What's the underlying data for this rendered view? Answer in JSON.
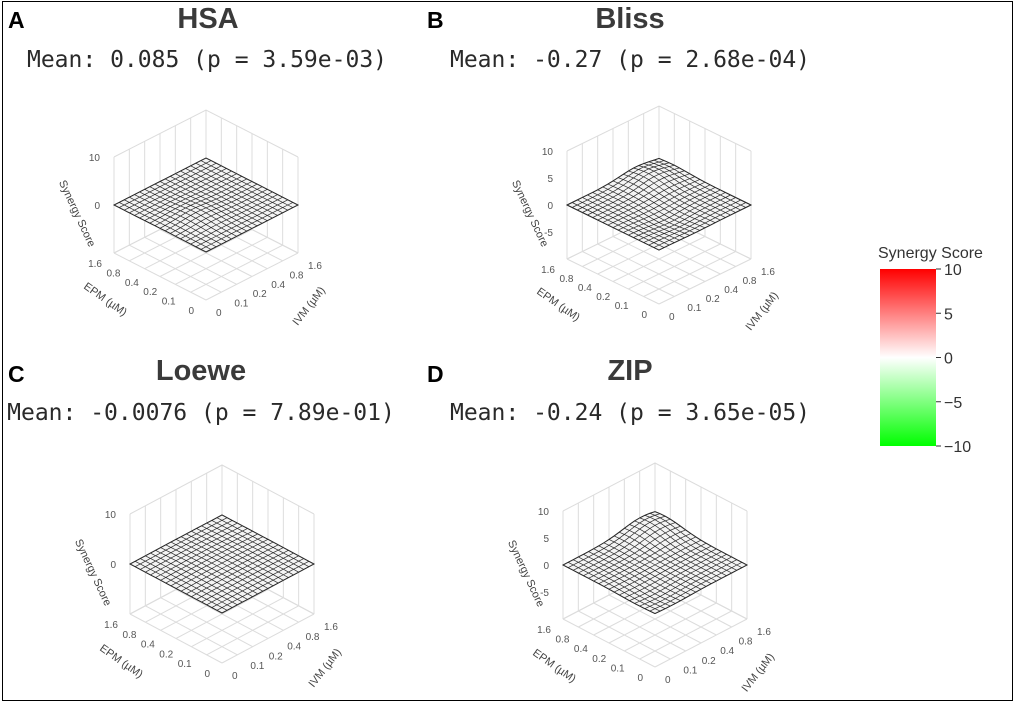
{
  "chart_data": [
    {
      "letter": "A",
      "title": "HSA",
      "subtitle": "Mean: 0.085 (p = 3.59e-03)",
      "type": "surface",
      "xlabel": "EPM (µM)",
      "ylabel": "IVM (µM)",
      "zlabel": "Synergy Score",
      "x_ticks": [
        "0",
        "0.1",
        "0.2",
        "0.4",
        "0.8",
        "1.6"
      ],
      "y_ticks": [
        "0",
        "0.1",
        "0.2",
        "0.4",
        "0.8",
        "1.6"
      ],
      "z_ticks": [
        "0",
        "10"
      ],
      "zlim": [
        -10,
        10
      ],
      "mean": 0.085,
      "p_value": "3.59e-03"
    },
    {
      "letter": "B",
      "title": "Bliss",
      "subtitle": "Mean: -0.27 (p = 2.68e-04)",
      "type": "surface",
      "xlabel": "EPM (µM)",
      "ylabel": "IVM (µM)",
      "zlabel": "Synergy Score",
      "x_ticks": [
        "0",
        "0.1",
        "0.2",
        "0.4",
        "0.8",
        "1.6"
      ],
      "y_ticks": [
        "0",
        "0.1",
        "0.2",
        "0.4",
        "0.8",
        "1.6"
      ],
      "z_ticks": [
        "-5",
        "0",
        "5",
        "10"
      ],
      "zlim": [
        -10,
        10
      ],
      "mean": -0.27,
      "p_value": "2.68e-04"
    },
    {
      "letter": "C",
      "title": "Loewe",
      "subtitle": "Mean: -0.0076 (p = 7.89e-01)",
      "type": "surface",
      "xlabel": "EPM (µM)",
      "ylabel": "IVM (µM)",
      "zlabel": "Synergy Score",
      "x_ticks": [
        "0",
        "0.1",
        "0.2",
        "0.4",
        "0.8",
        "1.6"
      ],
      "y_ticks": [
        "0",
        "0.1",
        "0.2",
        "0.4",
        "0.8",
        "1.6"
      ],
      "z_ticks": [
        "0",
        "10"
      ],
      "zlim": [
        -10,
        10
      ],
      "mean": -0.0076,
      "p_value": "7.89e-01"
    },
    {
      "letter": "D",
      "title": "ZIP",
      "subtitle": "Mean: -0.24 (p = 3.65e-05)",
      "type": "surface",
      "xlabel": "EPM (µM)",
      "ylabel": "IVM (µM)",
      "zlabel": "Synergy Score",
      "x_ticks": [
        "0",
        "0.1",
        "0.2",
        "0.4",
        "0.8",
        "1.6"
      ],
      "y_ticks": [
        "0",
        "0.1",
        "0.2",
        "0.4",
        "0.8",
        "1.6"
      ],
      "z_ticks": [
        "-5",
        "0",
        "5",
        "10"
      ],
      "zlim": [
        -10,
        10
      ],
      "mean": -0.24,
      "p_value": "3.65e-05"
    }
  ],
  "legend": {
    "title": "Synergy Score",
    "ticks": [
      "10",
      "5",
      "0",
      "−5",
      "−10"
    ],
    "range": [
      -10,
      10
    ],
    "colors": {
      "high": "#ff0000",
      "mid": "#ffffff",
      "low": "#00ff00"
    }
  },
  "colors": {
    "grid": "#dcdcdc",
    "mesh": "#2b2b2b",
    "surface": "#f4f4f4"
  }
}
